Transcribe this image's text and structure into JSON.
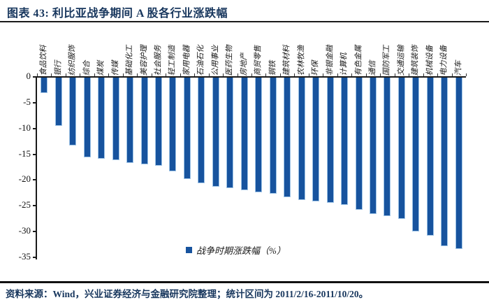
{
  "header": {
    "title": "图表 43: 利比亚战争期间 A 股各行业涨跌幅"
  },
  "chart_data": {
    "type": "bar",
    "title": "利比亚战争期间 A 股各行业涨跌幅",
    "categories": [
      "食品饮料",
      "银行",
      "纺织服饰",
      "综合",
      "煤炭",
      "传媒",
      "基础化工",
      "美容护理",
      "社会服务",
      "轻工制造",
      "家用电器",
      "石油石化",
      "公用事业",
      "医药生物",
      "房地产",
      "商贸零售",
      "钢铁",
      "建筑材料",
      "农林牧渔",
      "环保",
      "非银金融",
      "计算机",
      "有色金属",
      "通信",
      "国防军工",
      "交通运输",
      "建筑装饰",
      "机械设备",
      "电力设备",
      "汽车"
    ],
    "values": [
      -3.0,
      -9.4,
      -13.2,
      -15.5,
      -15.8,
      -16.0,
      -16.5,
      -16.8,
      -17.1,
      -18.2,
      -19.7,
      -20.5,
      -21.1,
      -21.4,
      -21.8,
      -22.2,
      -22.5,
      -23.2,
      -23.8,
      -24.0,
      -24.3,
      -24.7,
      -25.6,
      -26.4,
      -26.8,
      -27.4,
      -29.8,
      -30.6,
      -32.7,
      -33.3
    ],
    "legend": "战争时期涨跌幅（%）",
    "xlabel": "",
    "ylabel": "",
    "ylim": [
      -35,
      0
    ],
    "yticks": [
      0,
      -5,
      -10,
      -15,
      -20,
      -25,
      -30,
      -35
    ],
    "grid": "off",
    "legend_position": "bottom-center",
    "bar_color": "#17539E",
    "bar_edge_color": "#9DC3E6",
    "axis_color": "#1a1a1a"
  },
  "footer": {
    "source_text": "资料来源：Wind，兴业证券经济与金融研究院整理；统计区间为 2011/2/16-2011/10/20。"
  }
}
